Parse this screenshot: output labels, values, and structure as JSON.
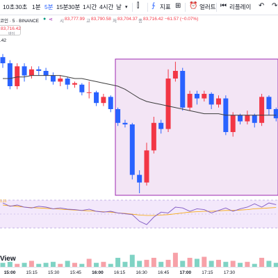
{
  "toolbar": {
    "timeframes": [
      {
        "label": "10초",
        "name": "tf-10s",
        "active": false
      },
      {
        "label": "30초",
        "name": "tf-30s",
        "active": false
      },
      {
        "label": "1분",
        "name": "tf-1m",
        "active": false
      },
      {
        "label": "5분",
        "name": "tf-5m",
        "active": true
      },
      {
        "label": "15분",
        "name": "tf-15m",
        "active": false
      },
      {
        "label": "30분",
        "name": "tf-30m",
        "active": false
      },
      {
        "label": "1시간",
        "name": "tf-1h",
        "active": false
      },
      {
        "label": "4시간",
        "name": "tf-4h",
        "active": false
      },
      {
        "label": "날",
        "name": "tf-day",
        "active": false
      }
    ],
    "indicators_label": "지표",
    "alerts_label": "얼러트",
    "replay_label": "리플레이"
  },
  "legend": {
    "symbol": "코인 · 5 · BINANCE",
    "open_label": "시",
    "open": "83,777.99",
    "high_label": "고",
    "high": "83,790.58",
    "low_label": "저",
    "low": "83,704.37",
    "close_label": "종",
    "close": "83,716.42",
    "change": "−61.57 (−0.07%)"
  },
  "price_tag": {
    "price": "83,716.42",
    "qty": "바이"
  },
  "volume_value": ".42",
  "osc_value": "1.11",
  "brand": "View",
  "colors": {
    "up": "#f23645",
    "down": "#2962ff",
    "box_fill": "#f3e5f5",
    "box_stroke": "#9c27b0",
    "ma": "#3c3c3c",
    "accent": "#2962ff"
  },
  "chart_data": {
    "type": "candlestick",
    "x_labels": [
      "15:00",
      "15:15",
      "15:30",
      "15:45",
      "16:00",
      "16:15",
      "16:30",
      "16:45",
      "17:00",
      "17:15",
      "17:30"
    ],
    "candles": [
      {
        "o": 64,
        "c": 60,
        "h": 66,
        "l": 57
      },
      {
        "o": 60,
        "c": 45,
        "h": 62,
        "l": 43
      },
      {
        "o": 45,
        "c": 58,
        "h": 60,
        "l": 43
      },
      {
        "o": 58,
        "c": 52,
        "h": 60,
        "l": 48
      },
      {
        "o": 52,
        "c": 56,
        "h": 58,
        "l": 50
      },
      {
        "o": 56,
        "c": 55,
        "h": 58,
        "l": 52
      },
      {
        "o": 55,
        "c": 52,
        "h": 57,
        "l": 49
      },
      {
        "o": 52,
        "c": 48,
        "h": 54,
        "l": 46
      },
      {
        "o": 48,
        "c": 50,
        "h": 52,
        "l": 45
      },
      {
        "o": 50,
        "c": 46,
        "h": 51,
        "l": 43
      },
      {
        "o": 46,
        "c": 47,
        "h": 48,
        "l": 44
      },
      {
        "o": 46,
        "c": 41,
        "h": 47,
        "l": 39
      },
      {
        "o": 41,
        "c": 41,
        "h": 48,
        "l": 37
      },
      {
        "o": 41,
        "c": 34,
        "h": 42,
        "l": 32
      },
      {
        "o": 34,
        "c": 38,
        "h": 40,
        "l": 32
      },
      {
        "o": 38,
        "c": 30,
        "h": 39,
        "l": 28
      },
      {
        "o": 30,
        "c": 21,
        "h": 31,
        "l": 19
      },
      {
        "o": 21,
        "c": 20,
        "h": 23,
        "l": 18
      },
      {
        "o": 20,
        "c": -13,
        "h": 21,
        "l": -16
      },
      {
        "o": -13,
        "c": -18,
        "h": -10,
        "l": -25
      },
      {
        "o": -18,
        "c": 3,
        "h": 8,
        "l": -20
      },
      {
        "o": 3,
        "c": 21,
        "h": 25,
        "l": 1
      },
      {
        "o": 21,
        "c": 17,
        "h": 23,
        "l": 14
      },
      {
        "o": 17,
        "c": 50,
        "h": 56,
        "l": 15
      },
      {
        "o": 50,
        "c": 55,
        "h": 61,
        "l": 48
      },
      {
        "o": 55,
        "c": 31,
        "h": 57,
        "l": 29
      },
      {
        "o": 31,
        "c": 40,
        "h": 42,
        "l": 29
      },
      {
        "o": 40,
        "c": 37,
        "h": 42,
        "l": 33
      },
      {
        "o": 37,
        "c": 40,
        "h": 42,
        "l": 35
      },
      {
        "o": 40,
        "c": 33,
        "h": 41,
        "l": 30
      },
      {
        "o": 33,
        "c": 37,
        "h": 39,
        "l": 31
      },
      {
        "o": 37,
        "c": 15,
        "h": 39,
        "l": 13
      },
      {
        "o": 15,
        "c": 26,
        "h": 28,
        "l": 12
      },
      {
        "o": 26,
        "c": 22,
        "h": 27,
        "l": 20
      },
      {
        "o": 22,
        "c": 26,
        "h": 29,
        "l": 20
      },
      {
        "o": 26,
        "c": 21,
        "h": 27,
        "l": 18
      },
      {
        "o": 21,
        "c": 38,
        "h": 40,
        "l": 19
      },
      {
        "o": 38,
        "c": 30,
        "h": 39,
        "l": 26
      },
      {
        "o": 30,
        "c": 24,
        "h": 31,
        "l": 22
      }
    ],
    "moving_average": [
      50,
      50,
      51,
      51,
      52,
      52,
      52,
      52,
      52,
      51,
      50,
      50,
      49,
      48,
      47,
      46,
      45,
      43,
      40,
      37,
      35,
      34,
      33,
      32,
      31,
      30,
      29,
      28,
      27,
      27,
      27,
      26,
      26,
      26,
      26,
      26,
      26,
      26,
      26
    ],
    "volumes": [
      4,
      5,
      3,
      4,
      6,
      3,
      4,
      5,
      3,
      6,
      4,
      3,
      8,
      4,
      5,
      3,
      9,
      5,
      12,
      6,
      7,
      9,
      5,
      7,
      14,
      6,
      9,
      8,
      10,
      6,
      7,
      5,
      6,
      4,
      5,
      3,
      9,
      6,
      4
    ],
    "oscillator": [
      60,
      52,
      55,
      50,
      48,
      52,
      50,
      46,
      48,
      45,
      44,
      42,
      45,
      40,
      38,
      40,
      36,
      34,
      32,
      16,
      8,
      26,
      38,
      36,
      50,
      48,
      40,
      46,
      44,
      36,
      42,
      48,
      40,
      46,
      50,
      58,
      50,
      60,
      56
    ],
    "oscillator_signal": [
      55,
      53,
      52,
      50,
      49,
      48,
      47,
      46,
      45,
      44,
      43,
      42,
      41,
      40,
      39,
      38,
      36,
      35,
      33,
      31,
      30,
      30,
      31,
      32,
      34,
      36,
      38,
      39,
      40,
      40,
      41,
      42,
      42,
      43,
      44,
      46,
      47,
      48,
      49
    ]
  }
}
